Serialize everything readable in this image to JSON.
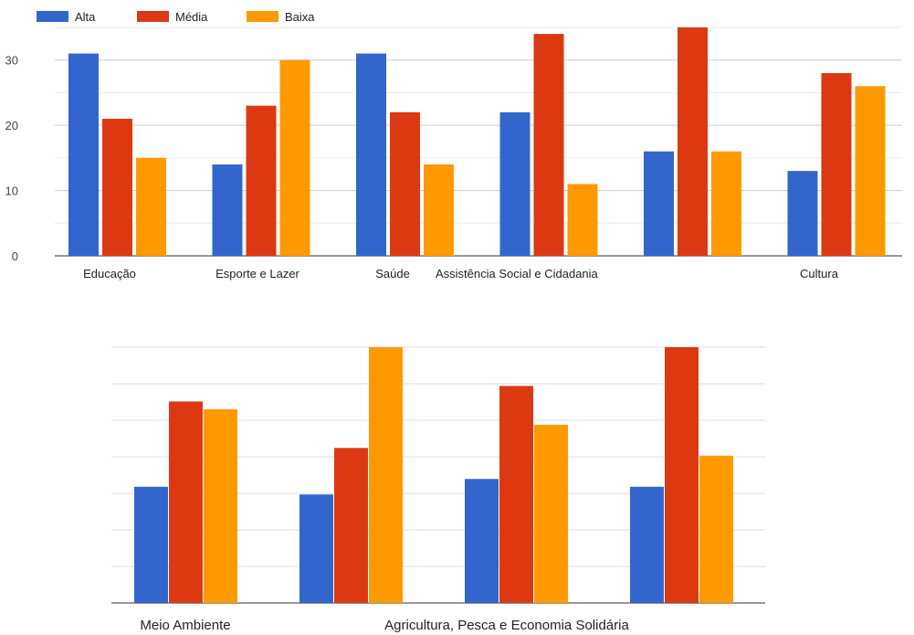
{
  "legend_position": "top-left",
  "chart_data": [
    {
      "type": "bar",
      "categories": [
        "Educação",
        "Esporte e Lazer",
        "Saúde",
        "Assistência Social e Cidadania",
        "",
        "Cultura"
      ],
      "series": [
        {
          "name": "Alta",
          "color": "#3366cc",
          "values": [
            31,
            14,
            31,
            22,
            16,
            13
          ]
        },
        {
          "name": "Média",
          "color": "#dc3912",
          "values": [
            21,
            23,
            22,
            34,
            35,
            28
          ]
        },
        {
          "name": "Baixa",
          "color": "#ff9900",
          "values": [
            15,
            30,
            14,
            11,
            16,
            26
          ]
        }
      ],
      "yticks": [
        "0",
        "10",
        "20",
        "30"
      ],
      "ylim": [
        0,
        35
      ],
      "grid": true
    },
    {
      "type": "bar",
      "categories": [
        "Meio Ambiente",
        "",
        "Agricultura, Pesca e Economia Solidária",
        ""
      ],
      "series": [
        {
          "color": "#3366cc",
          "values": [
            15,
            14,
            16,
            15
          ]
        },
        {
          "color": "#dc3912",
          "values": [
            26,
            20,
            28,
            33
          ]
        },
        {
          "color": "#ff9900",
          "values": [
            25,
            33,
            23,
            19
          ]
        }
      ],
      "ylim": [
        0,
        33
      ],
      "grid": true
    }
  ]
}
